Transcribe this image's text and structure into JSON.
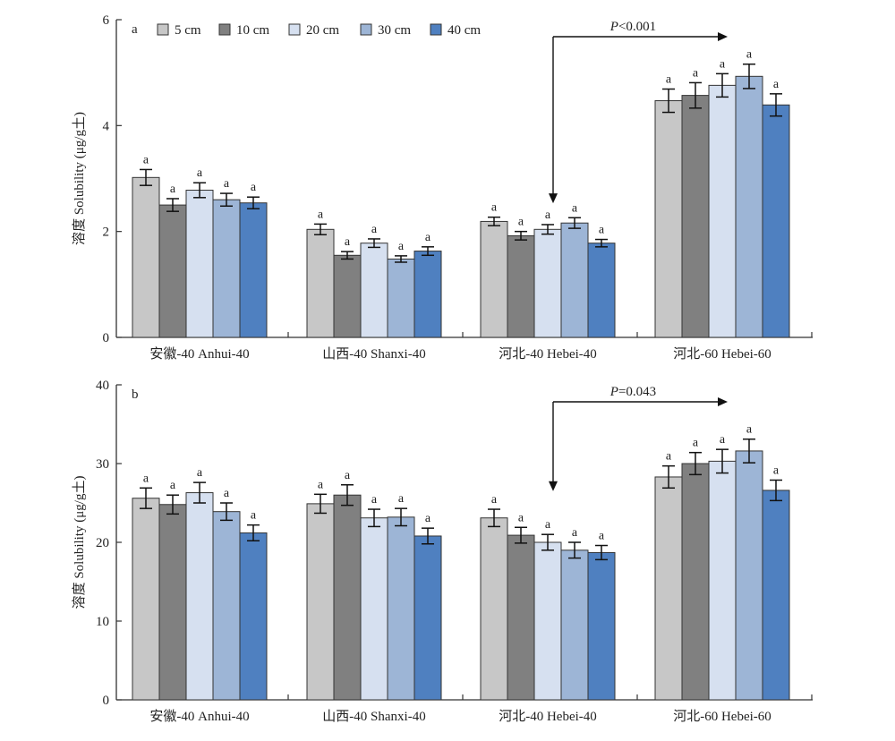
{
  "chart_data": [
    {
      "type": "bar",
      "panel_label": "a",
      "ylabel": "溶度 Solubility (μg/g土)",
      "ylim": [
        0,
        6
      ],
      "yticks": [
        0,
        2,
        4,
        6
      ],
      "categories": [
        "安徽-40 Anhui-40",
        "山西-40 Shanxi-40",
        "河北-40 Hebei-40",
        "河北-60 Hebei-60"
      ],
      "series": [
        {
          "name": "5 cm",
          "color": "#c7c7c7",
          "values": [
            3.02,
            2.04,
            2.19,
            4.47
          ],
          "errors": [
            0.15,
            0.1,
            0.08,
            0.22
          ],
          "labels": [
            "a",
            "a",
            "a",
            "a"
          ]
        },
        {
          "name": "10 cm",
          "color": "#808080",
          "values": [
            2.5,
            1.55,
            1.92,
            4.57
          ],
          "errors": [
            0.12,
            0.07,
            0.08,
            0.24
          ],
          "labels": [
            "a",
            "a",
            "a",
            "a"
          ]
        },
        {
          "name": "20 cm",
          "color": "#d6e0f0",
          "values": [
            2.78,
            1.78,
            2.04,
            4.76
          ],
          "errors": [
            0.14,
            0.08,
            0.09,
            0.22
          ],
          "labels": [
            "a",
            "a",
            "a",
            "a"
          ]
        },
        {
          "name": "30 cm",
          "color": "#9db5d6",
          "values": [
            2.6,
            1.48,
            2.16,
            4.93
          ],
          "errors": [
            0.12,
            0.06,
            0.1,
            0.23
          ],
          "labels": [
            "a",
            "a",
            "a",
            "a"
          ]
        },
        {
          "name": "40 cm",
          "color": "#4f80c0",
          "values": [
            2.54,
            1.63,
            1.78,
            4.39
          ],
          "errors": [
            0.11,
            0.08,
            0.07,
            0.21
          ],
          "labels": [
            "a",
            "a",
            "a",
            "a"
          ]
        }
      ],
      "annotation": {
        "text_italic": "P",
        "text_rest": "<0.001",
        "from_category": 2,
        "to_category": 3
      }
    },
    {
      "type": "bar",
      "panel_label": "b",
      "ylabel": "溶度 Solubility (μg/g土)",
      "ylim": [
        0,
        40
      ],
      "yticks": [
        0,
        10,
        20,
        30,
        40
      ],
      "categories": [
        "安徽-40 Anhui-40",
        "山西-40 Shanxi-40",
        "河北-40 Hebei-40",
        "河北-60 Hebei-60"
      ],
      "series": [
        {
          "name": "5 cm",
          "color": "#c7c7c7",
          "values": [
            25.6,
            24.9,
            23.1,
            28.3
          ],
          "errors": [
            1.3,
            1.2,
            1.1,
            1.4
          ],
          "labels": [
            "a",
            "a",
            "a",
            "a"
          ]
        },
        {
          "name": "10 cm",
          "color": "#808080",
          "values": [
            24.8,
            26.0,
            20.9,
            30.0
          ],
          "errors": [
            1.2,
            1.3,
            1.0,
            1.4
          ],
          "labels": [
            "a",
            "a",
            "a",
            "a"
          ]
        },
        {
          "name": "20 cm",
          "color": "#d6e0f0",
          "values": [
            26.3,
            23.1,
            20.0,
            30.3
          ],
          "errors": [
            1.3,
            1.1,
            1.0,
            1.5
          ],
          "labels": [
            "a",
            "a",
            "a",
            "a"
          ]
        },
        {
          "name": "30 cm",
          "color": "#9db5d6",
          "values": [
            23.9,
            23.2,
            19.0,
            31.6
          ],
          "errors": [
            1.1,
            1.1,
            1.0,
            1.5
          ],
          "labels": [
            "a",
            "a",
            "a",
            "a"
          ]
        },
        {
          "name": "40 cm",
          "color": "#4f80c0",
          "values": [
            21.2,
            20.8,
            18.7,
            26.6
          ],
          "errors": [
            1.0,
            1.0,
            0.9,
            1.3
          ],
          "labels": [
            "a",
            "a",
            "a",
            "a"
          ]
        }
      ],
      "annotation": {
        "text_italic": "P",
        "text_rest": "=0.043",
        "from_category": 2,
        "to_category": 3
      }
    }
  ]
}
